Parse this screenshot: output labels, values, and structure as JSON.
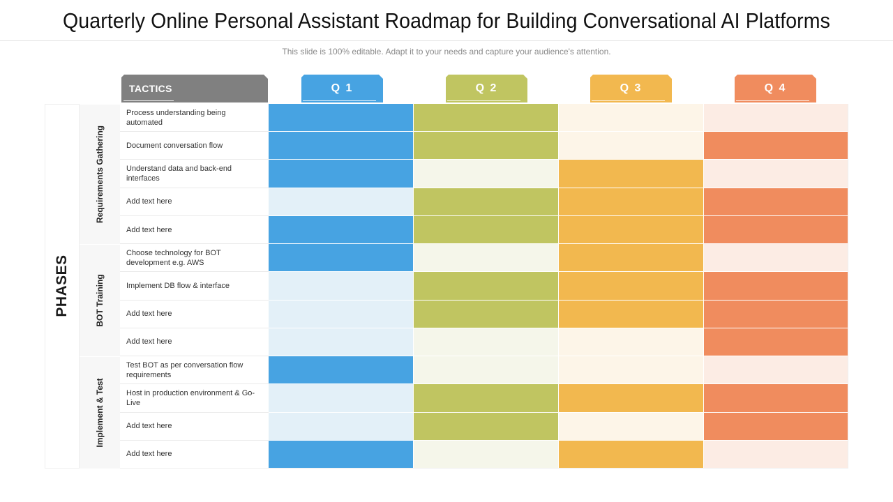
{
  "header": {
    "title": "Quarterly Online Personal Assistant Roadmap for Building Conversational AI Platforms",
    "subtitle": "This slide is 100% editable. Adapt it to your needs and capture your audience's attention."
  },
  "columns": {
    "tactics_label": "TACTICS",
    "quarters": [
      {
        "label": "Q 1",
        "color": "#47a3e2",
        "light": "#e3f0f8"
      },
      {
        "label": "Q 2",
        "color": "#c0c561",
        "light": "#f5f6ea"
      },
      {
        "label": "Q 3",
        "color": "#f2b84f",
        "light": "#fdf5e8"
      },
      {
        "label": "Q 4",
        "color": "#f08c5e",
        "light": "#fcece4"
      }
    ]
  },
  "phases_label": "PHASES",
  "phases": [
    {
      "name": "Requirements Gathering",
      "rows": [
        {
          "tactic": "Process understanding being automated",
          "active": [
            true,
            true,
            false,
            false
          ]
        },
        {
          "tactic": "Document conversation flow",
          "active": [
            true,
            true,
            false,
            true
          ]
        },
        {
          "tactic": "Understand data and back-end interfaces",
          "active": [
            true,
            false,
            true,
            false
          ]
        },
        {
          "tactic": "Add text here",
          "active": [
            false,
            true,
            true,
            true
          ]
        },
        {
          "tactic": "Add text here",
          "active": [
            true,
            true,
            true,
            true
          ]
        }
      ]
    },
    {
      "name": "BOT Training",
      "rows": [
        {
          "tactic": "Choose technology for BOT development e.g. AWS",
          "active": [
            true,
            false,
            true,
            false
          ]
        },
        {
          "tactic": "Implement DB flow  & interface",
          "active": [
            false,
            true,
            true,
            true
          ]
        },
        {
          "tactic": "Add text here",
          "active": [
            false,
            true,
            true,
            true
          ]
        },
        {
          "tactic": "Add text here",
          "active": [
            false,
            false,
            false,
            true
          ]
        }
      ]
    },
    {
      "name": "Implement & Test",
      "rows": [
        {
          "tactic": "Test BOT as per conversation flow requirements",
          "active": [
            true,
            false,
            false,
            false
          ]
        },
        {
          "tactic": "Host in production environment & Go-Live",
          "active": [
            false,
            true,
            true,
            true
          ]
        },
        {
          "tactic": "Add text here",
          "active": [
            false,
            true,
            false,
            true
          ]
        },
        {
          "tactic": "Add text here",
          "active": [
            true,
            false,
            true,
            false
          ]
        }
      ]
    }
  ]
}
